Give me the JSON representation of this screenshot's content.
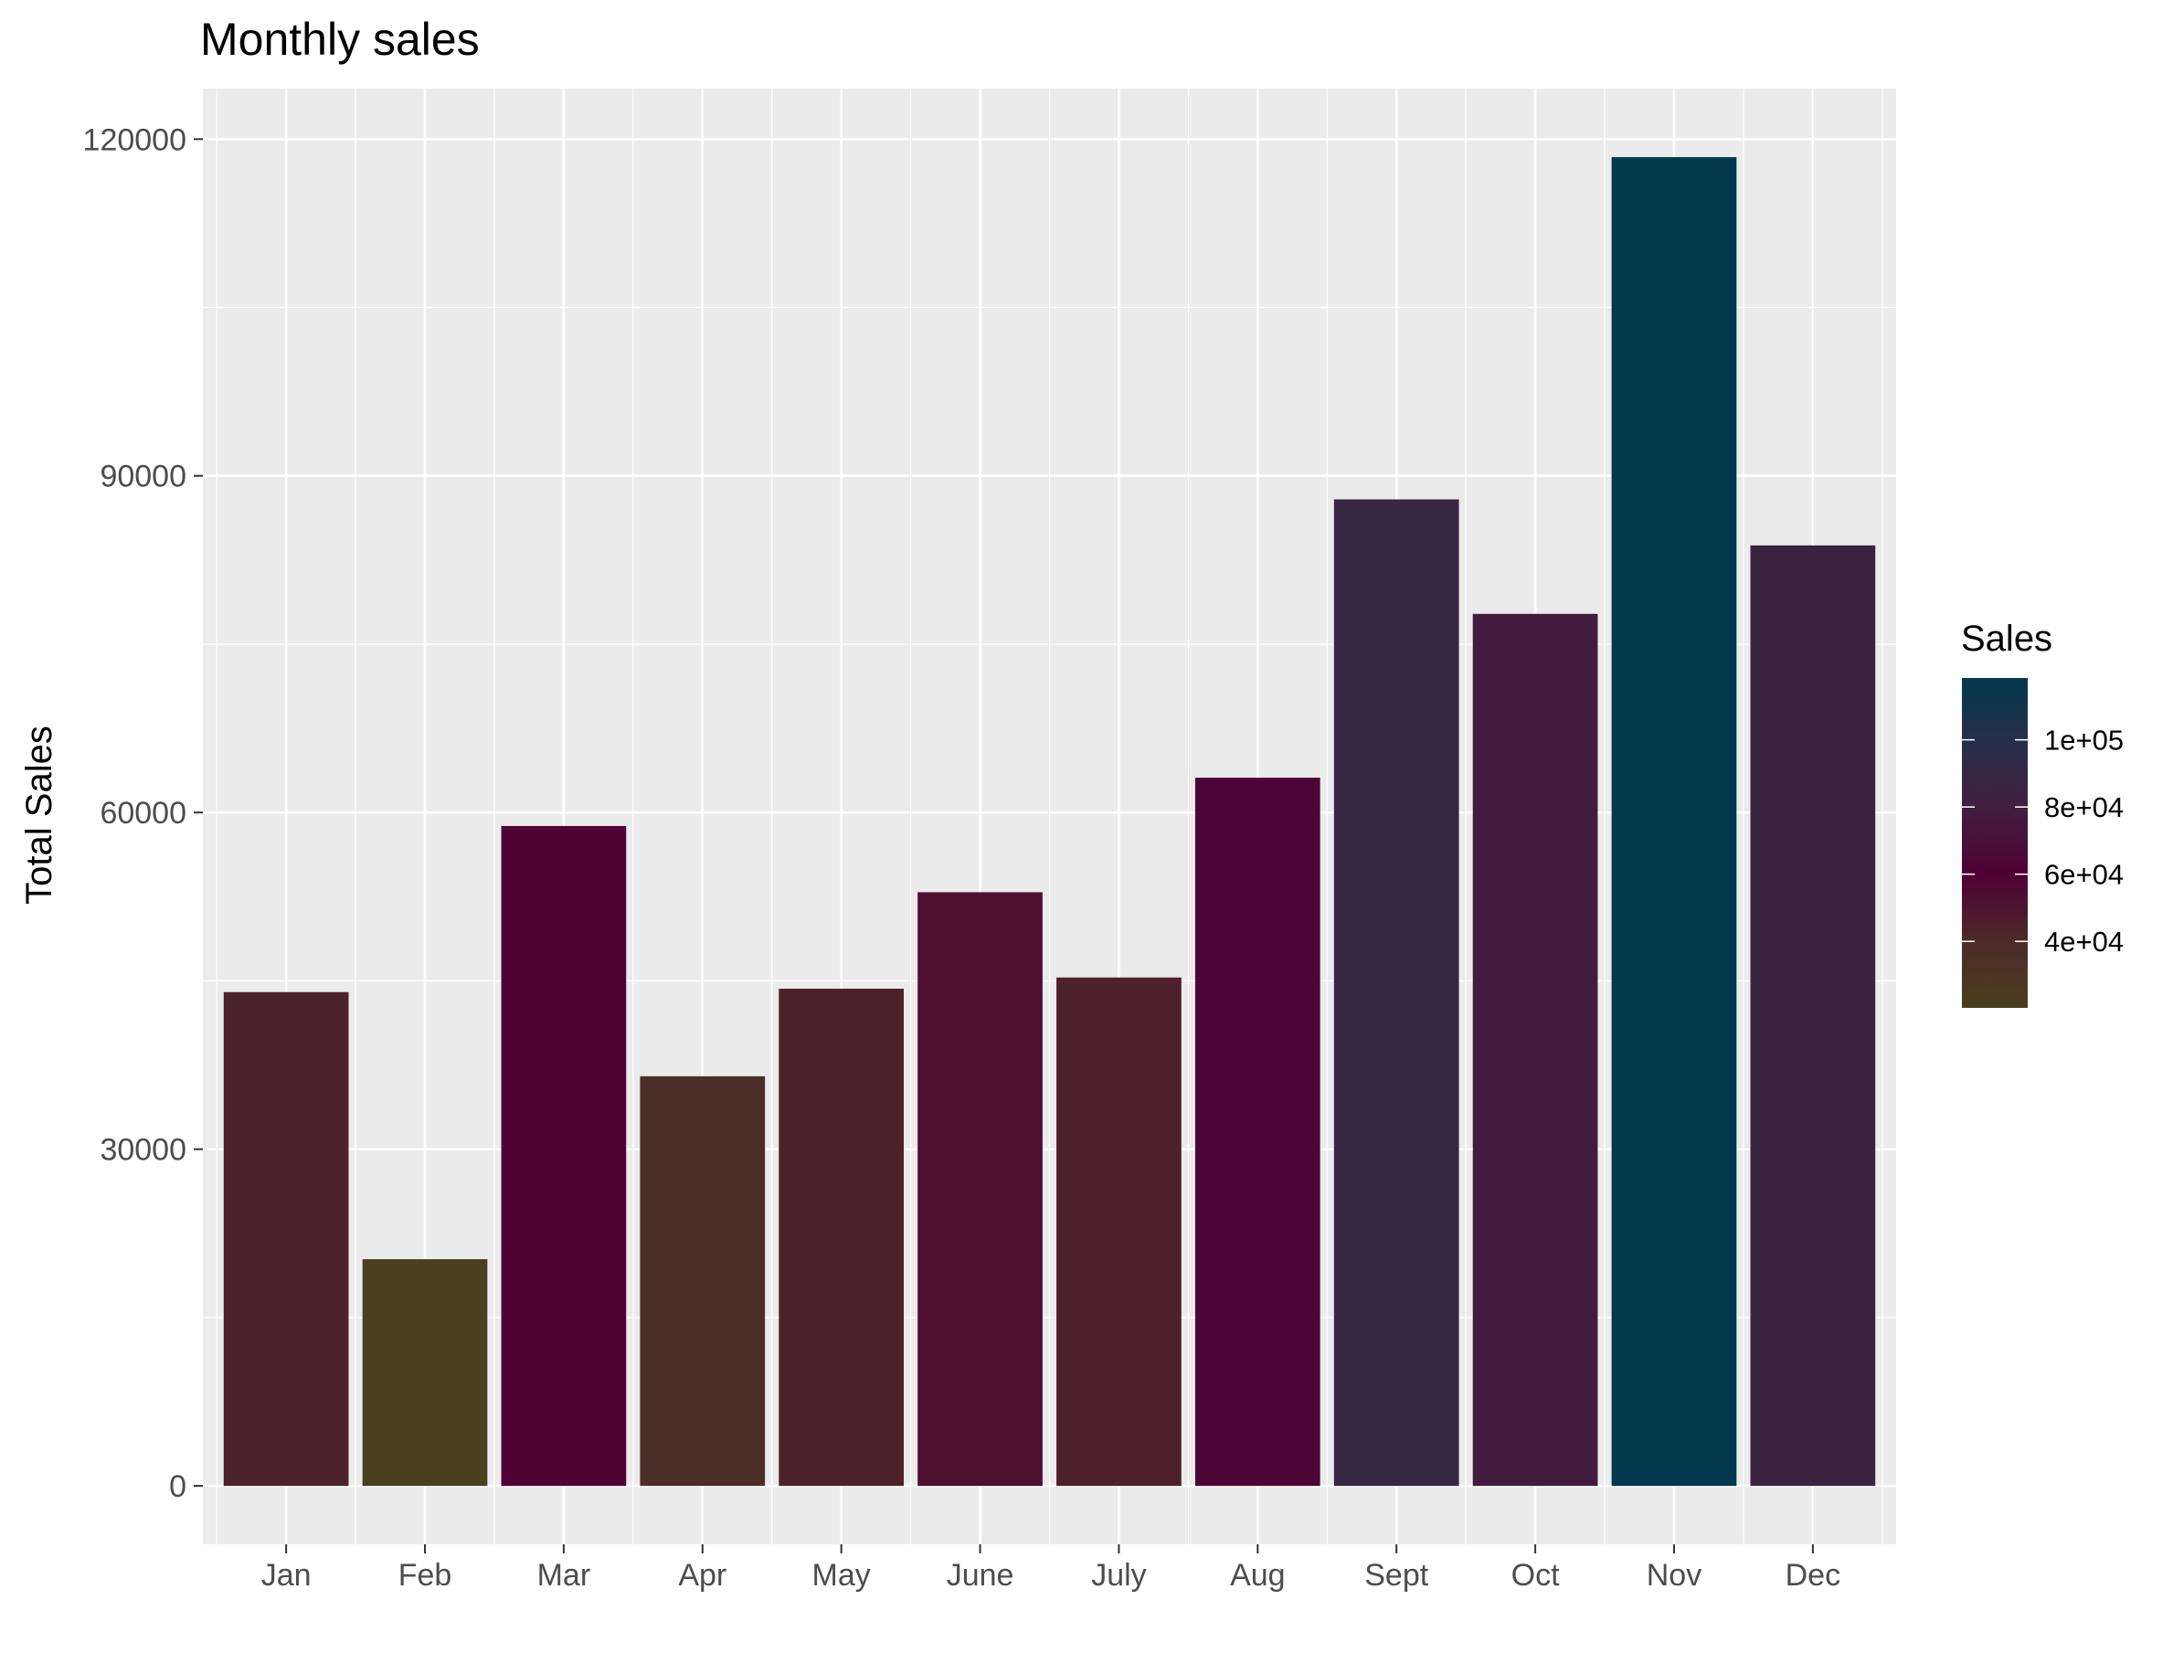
{
  "chart_data": {
    "type": "bar",
    "title": "Monthly sales",
    "xlabel": "",
    "ylabel": "Total Sales",
    "categories": [
      "Jan",
      "Feb",
      "Mar",
      "Apr",
      "May",
      "June",
      "July",
      "Aug",
      "Sept",
      "Oct",
      "Nov",
      "Dec"
    ],
    "values": [
      44000,
      20200,
      58800,
      36500,
      44300,
      52900,
      45300,
      63100,
      87900,
      77700,
      118400,
      83800
    ],
    "ylim": [
      -5200,
      124500
    ],
    "yticks": [
      0,
      30000,
      60000,
      90000,
      120000
    ],
    "ytick_labels": [
      "0",
      "30000",
      "60000",
      "90000",
      "120000"
    ],
    "grid": true,
    "panel_background": "#ebebeb",
    "legend": {
      "title": "Sales",
      "placement": "right",
      "type": "colorbar",
      "range": [
        20200,
        118400
      ],
      "breaks": [
        40000,
        60000,
        80000,
        100000
      ],
      "labels": [
        "4e+04",
        "6e+04",
        "8e+04",
        "1e+05"
      ],
      "color_stops": [
        {
          "value": 20200,
          "color": "#4a3f1f"
        },
        {
          "value": 40000,
          "color": "#4d2a2a"
        },
        {
          "value": 60000,
          "color": "#4f0035"
        },
        {
          "value": 80000,
          "color": "#411f3f"
        },
        {
          "value": 100000,
          "color": "#262f4a"
        },
        {
          "value": 118400,
          "color": "#02384c"
        }
      ]
    }
  }
}
